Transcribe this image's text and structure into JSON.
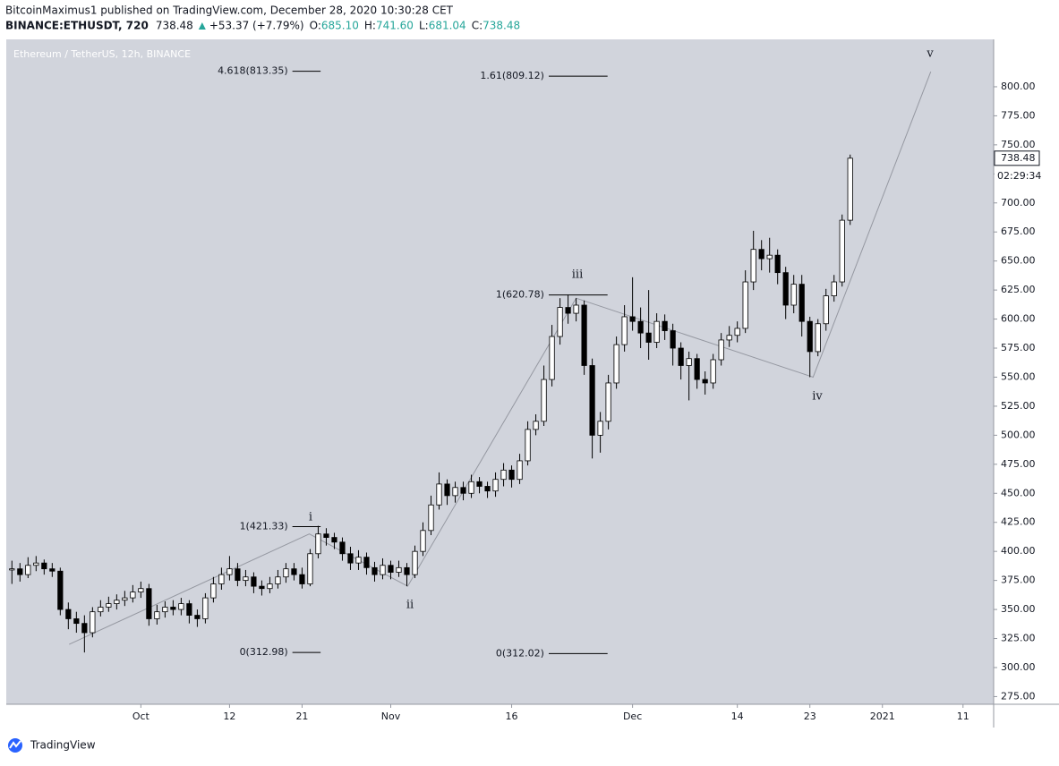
{
  "header": {
    "published": "BitcoinMaximus1 published on TradingView.com, December 28, 2020 10:30:28 CET",
    "symbol": "BINANCE:ETHUSDT, 720",
    "last": "738.48",
    "change": "+53.37 (+7.79%)",
    "ohlc": [
      {
        "key": "O:",
        "value": "685.10"
      },
      {
        "key": "H:",
        "value": "741.60"
      },
      {
        "key": "L:",
        "value": "681.04"
      },
      {
        "key": "C:",
        "value": "738.48"
      }
    ]
  },
  "footer": {
    "brand": "TradingView"
  },
  "chart_data": {
    "type": "candlestick",
    "title": "Ethereum / TetherUS, 12h, BINANCE",
    "y_unit": "USDT",
    "x": [
      -16,
      -15,
      -14,
      -13,
      -12,
      -11,
      -10,
      -9,
      -8,
      -7,
      -6,
      -5,
      -4,
      -3,
      -2,
      -1,
      0,
      1,
      2,
      3,
      4,
      5,
      6,
      7,
      8,
      9,
      10,
      11,
      12,
      13,
      14,
      15,
      16,
      17,
      18,
      19,
      20,
      21,
      22,
      23,
      24,
      25,
      26,
      27,
      28,
      29,
      30,
      31,
      32,
      33,
      34,
      35,
      36,
      37,
      38,
      39,
      40,
      41,
      42,
      43,
      44,
      45,
      46,
      47,
      48,
      49,
      50,
      51,
      52,
      53,
      54,
      55,
      56,
      57,
      58,
      59,
      60,
      61,
      62,
      63,
      64,
      65,
      66,
      67,
      68,
      69,
      70,
      71,
      72,
      73,
      74,
      75,
      76,
      77,
      78,
      79,
      80,
      81,
      82,
      83,
      84,
      85,
      86,
      87,
      88
    ],
    "open": [
      384,
      385,
      380,
      388,
      390,
      385,
      383,
      350,
      342,
      338,
      330,
      348,
      352,
      355,
      358,
      360,
      365,
      368,
      342,
      348,
      352,
      350,
      355,
      345,
      342,
      360,
      372,
      380,
      385,
      375,
      378,
      370,
      368,
      372,
      378,
      385,
      380,
      372,
      398,
      415,
      412,
      408,
      398,
      390,
      395,
      386,
      380,
      388,
      382,
      386,
      380,
      400,
      418,
      440,
      458,
      448,
      455,
      450,
      460,
      456,
      452,
      462,
      470,
      462,
      478,
      505,
      512,
      548,
      585,
      610,
      605,
      612,
      560,
      500,
      512,
      545,
      578,
      602,
      598,
      588,
      580,
      598,
      590,
      575,
      560,
      566,
      548,
      545,
      565,
      582,
      586,
      592,
      632,
      660,
      652,
      655,
      640,
      612,
      630,
      598,
      572,
      596,
      620,
      632,
      685.1
    ],
    "high": [
      392,
      390,
      395,
      396,
      393,
      390,
      386,
      356,
      348,
      345,
      352,
      358,
      361,
      363,
      366,
      371,
      374,
      372,
      354,
      357,
      358,
      360,
      358,
      350,
      364,
      378,
      386,
      396,
      390,
      384,
      382,
      375,
      378,
      384,
      390,
      390,
      386,
      402,
      422,
      420,
      416,
      412,
      404,
      401,
      399,
      391,
      394,
      392,
      392,
      390,
      405,
      425,
      448,
      468,
      462,
      460,
      460,
      466,
      464,
      460,
      468,
      476,
      474,
      484,
      512,
      518,
      560,
      595,
      618,
      621,
      618,
      616,
      566,
      520,
      552,
      585,
      612,
      636,
      610,
      625,
      605,
      604,
      596,
      580,
      572,
      570,
      555,
      570,
      588,
      594,
      598,
      642,
      676,
      668,
      670,
      660,
      645,
      638,
      638,
      602,
      600,
      626,
      638,
      690,
      741.6
    ],
    "low": [
      372,
      374,
      377,
      383,
      380,
      378,
      345,
      333,
      330,
      313,
      326,
      344,
      348,
      350,
      353,
      356,
      360,
      336,
      337,
      343,
      345,
      345,
      338,
      335,
      338,
      356,
      367,
      375,
      370,
      370,
      364,
      362,
      364,
      368,
      373,
      375,
      368,
      370,
      394,
      405,
      402,
      392,
      384,
      384,
      380,
      374,
      376,
      376,
      378,
      370,
      377,
      396,
      414,
      436,
      440,
      442,
      444,
      446,
      450,
      446,
      447,
      456,
      455,
      458,
      474,
      500,
      508,
      542,
      578,
      596,
      598,
      552,
      480,
      485,
      505,
      540,
      572,
      590,
      575,
      565,
      575,
      582,
      560,
      548,
      530,
      540,
      535,
      540,
      560,
      576,
      580,
      588,
      625,
      642,
      640,
      630,
      600,
      605,
      585,
      550,
      568,
      590,
      615,
      628,
      681.04
    ],
    "close": [
      385,
      380,
      388,
      390,
      385,
      383,
      350,
      342,
      338,
      330,
      348,
      352,
      355,
      358,
      360,
      365,
      368,
      342,
      348,
      352,
      350,
      355,
      345,
      342,
      360,
      372,
      380,
      385,
      375,
      378,
      370,
      368,
      372,
      378,
      385,
      380,
      372,
      398,
      415,
      412,
      408,
      398,
      390,
      395,
      386,
      380,
      388,
      382,
      386,
      380,
      400,
      418,
      440,
      458,
      448,
      455,
      450,
      460,
      456,
      452,
      462,
      470,
      462,
      478,
      505,
      512,
      548,
      585,
      610,
      605,
      612,
      560,
      500,
      512,
      545,
      578,
      602,
      598,
      588,
      580,
      598,
      590,
      575,
      560,
      566,
      548,
      545,
      565,
      582,
      586,
      592,
      632,
      660,
      652,
      655,
      640,
      612,
      630,
      598,
      572,
      596,
      620,
      632,
      685.1,
      738.48
    ],
    "up_color": "#ffffff",
    "down_color": "#000000",
    "edge_color": "#000000",
    "background": "#d1d4dc",
    "xlim": [
      -16.7,
      105.8
    ],
    "xticks": [
      {
        "value": 0,
        "label": "Oct"
      },
      {
        "value": 11,
        "label": "12"
      },
      {
        "value": 20,
        "label": "21"
      },
      {
        "value": 31,
        "label": "Nov"
      },
      {
        "value": 46,
        "label": "16"
      },
      {
        "value": 61,
        "label": "Dec"
      },
      {
        "value": 74,
        "label": "14"
      },
      {
        "value": 83,
        "label": "23"
      },
      {
        "value": 92,
        "label": "2021"
      },
      {
        "value": 102,
        "label": "11"
      }
    ],
    "ylim": [
      268.4,
      840.8
    ],
    "yticks": [
      {
        "value": 275,
        "label": "275.00"
      },
      {
        "value": 300,
        "label": "300.00"
      },
      {
        "value": 325,
        "label": "325.00"
      },
      {
        "value": 350,
        "label": "350.00"
      },
      {
        "value": 375,
        "label": "375.00"
      },
      {
        "value": 400,
        "label": "400.00"
      },
      {
        "value": 425,
        "label": "425.00"
      },
      {
        "value": 450,
        "label": "450.00"
      },
      {
        "value": 475,
        "label": "475.00"
      },
      {
        "value": 500,
        "label": "500.00"
      },
      {
        "value": 525,
        "label": "525.00"
      },
      {
        "value": 550,
        "label": "550.00"
      },
      {
        "value": 575,
        "label": "575.00"
      },
      {
        "value": 600,
        "label": "600.00"
      },
      {
        "value": 625,
        "label": "625.00"
      },
      {
        "value": 650,
        "label": "650.00"
      },
      {
        "value": 675,
        "label": "675.00"
      },
      {
        "value": 700,
        "label": "700.00"
      },
      {
        "value": 725,
        "label": "725.00"
      },
      {
        "value": 750,
        "label": "750.00"
      },
      {
        "value": 775,
        "label": "775.00"
      },
      {
        "value": 800,
        "label": "800.00"
      }
    ],
    "current_price": {
      "value": 738.48,
      "label": "738.48"
    },
    "countdown": "02:29:34",
    "fib_levels": [
      {
        "label": "4.618(813.35)",
        "value": 813.35,
        "x": [
          18.8,
          22.3
        ]
      },
      {
        "label": "1(421.33)",
        "value": 421.33,
        "x": [
          18.8,
          22.3
        ]
      },
      {
        "label": "0(312.98)",
        "value": 312.98,
        "x": [
          18.8,
          22.3
        ]
      },
      {
        "label": "1.61(809.12)",
        "value": 809.12,
        "x": [
          50.6,
          57.9
        ]
      },
      {
        "label": "1(620.78)",
        "value": 620.78,
        "x": [
          50.6,
          57.9
        ]
      },
      {
        "label": "0(312.02)",
        "value": 312.02,
        "x": [
          50.6,
          57.9
        ]
      }
    ],
    "wave_path": {
      "color": "#9598a1",
      "x": [
        -8.9,
        20.9,
        33.1,
        54,
        83.4,
        98
      ],
      "y": [
        320,
        415,
        370,
        618,
        550,
        813
      ]
    },
    "wave_labels": [
      "i",
      "ii",
      "iii",
      "iv",
      "v"
    ]
  }
}
